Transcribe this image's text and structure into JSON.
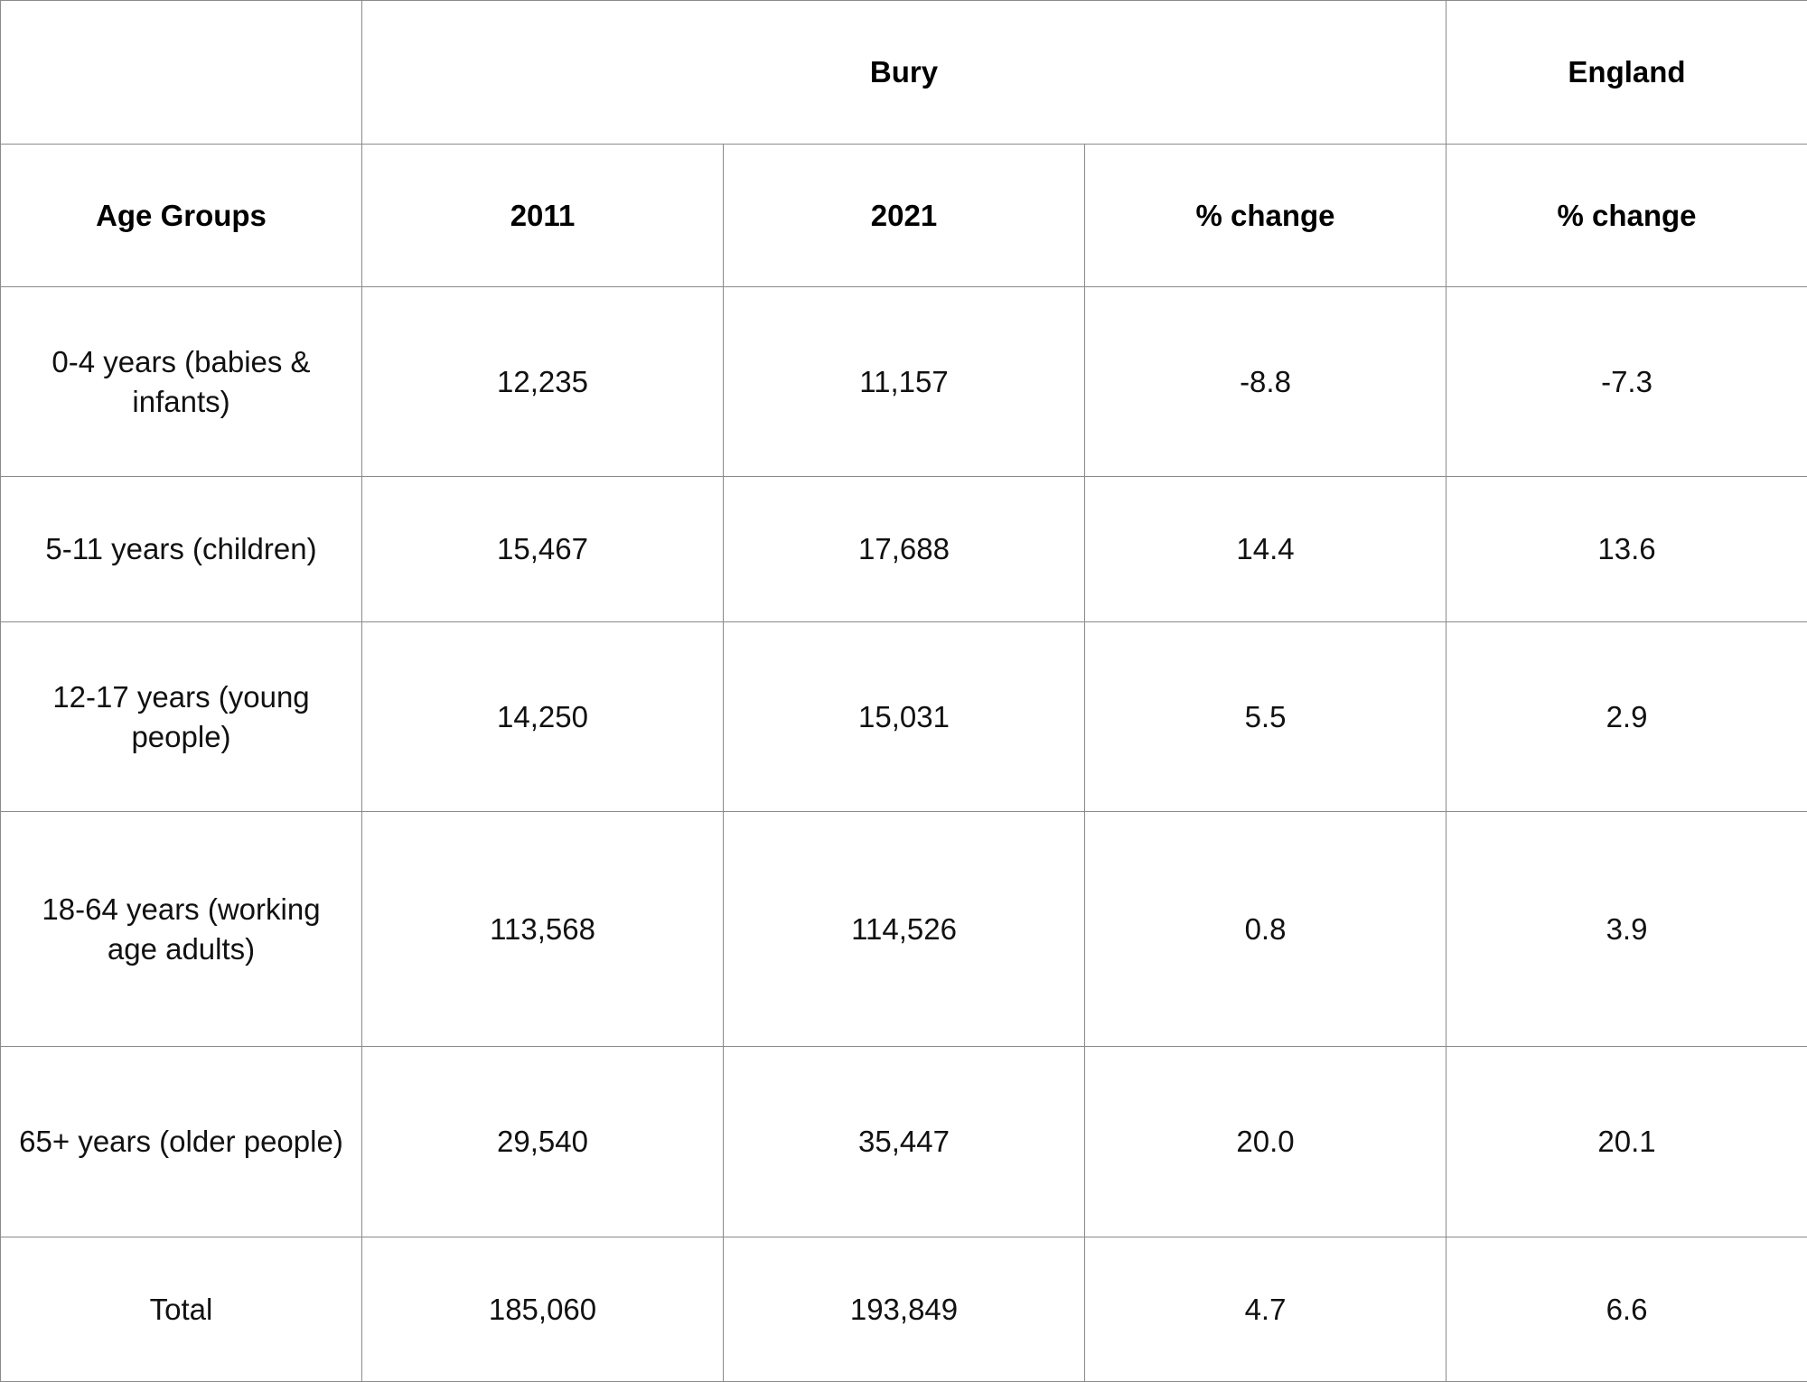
{
  "table": {
    "group_headers": {
      "blank": "",
      "bury": "Bury",
      "england": "England"
    },
    "column_headers": [
      "Age Groups",
      "2011",
      "2021",
      "% change",
      "% change"
    ],
    "rows": [
      {
        "age_group": "0-4 years (babies & infants)",
        "y2011": "12,235",
        "y2021": "11,157",
        "bury_change": "-8.8",
        "england_change": "-7.3"
      },
      {
        "age_group": "5-11 years (children)",
        "y2011": "15,467",
        "y2021": "17,688",
        "bury_change": "14.4",
        "england_change": "13.6"
      },
      {
        "age_group": "12-17 years (young people)",
        "y2011": "14,250",
        "y2021": "15,031",
        "bury_change": "5.5",
        "england_change": "2.9"
      },
      {
        "age_group": "18-64 years (working age adults)",
        "y2011": "113,568",
        "y2021": "114,526",
        "bury_change": "0.8",
        "england_change": "3.9"
      },
      {
        "age_group": "65+ years (older people)",
        "y2011": "29,540",
        "y2021": "35,447",
        "bury_change": "20.0",
        "england_change": "20.1"
      },
      {
        "age_group": "Total",
        "y2011": "185,060",
        "y2021": "193,849",
        "bury_change": "4.7",
        "england_change": "6.6"
      }
    ]
  }
}
